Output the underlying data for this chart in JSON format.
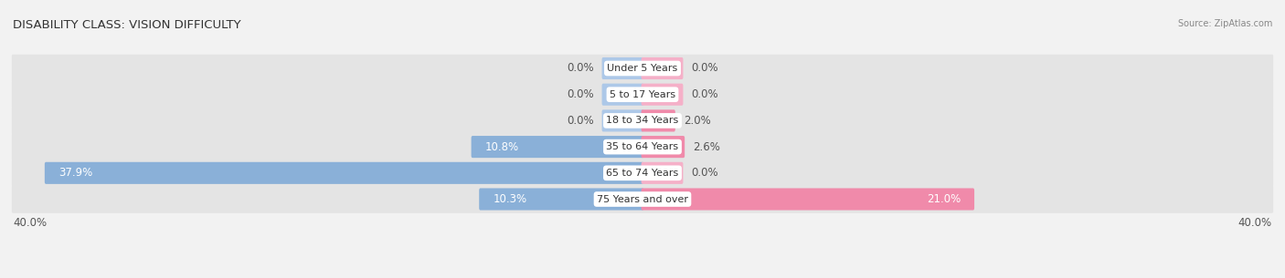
{
  "title": "DISABILITY CLASS: VISION DIFFICULTY",
  "source": "Source: ZipAtlas.com",
  "categories": [
    "Under 5 Years",
    "5 to 17 Years",
    "18 to 34 Years",
    "35 to 64 Years",
    "65 to 74 Years",
    "75 Years and over"
  ],
  "male_values": [
    0.0,
    0.0,
    0.0,
    10.8,
    37.9,
    10.3
  ],
  "female_values": [
    0.0,
    0.0,
    2.0,
    2.6,
    0.0,
    21.0
  ],
  "male_color": "#8ab0d8",
  "female_color": "#f08aaa",
  "male_stub_color": "#adc8e8",
  "female_stub_color": "#f5b0c8",
  "background_color": "#f2f2f2",
  "row_bg_color": "#e4e4e4",
  "xlim": 40.0,
  "label_fontsize": 8.5,
  "title_fontsize": 9.5,
  "category_fontsize": 8.0,
  "stub_size": 2.5
}
